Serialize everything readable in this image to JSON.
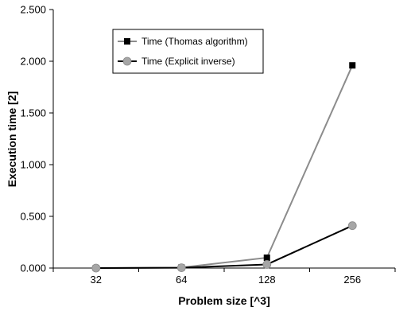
{
  "chart_data": {
    "type": "line",
    "xlabel": "Problem size [^3]",
    "ylabel": "Execution time [2]",
    "categories": [
      "32",
      "64",
      "128",
      "256"
    ],
    "y_ticks": [
      "0.000",
      "0.500",
      "1.000",
      "1.500",
      "2.000",
      "2.500"
    ],
    "ylim": [
      0,
      2.5
    ],
    "grid": false,
    "legend_position": "top-left",
    "series": [
      {
        "name": "Time (Thomas algorithm)",
        "values": [
          0.0,
          0.005,
          0.1,
          1.96
        ],
        "color": "#8c8c8c",
        "marker": "square",
        "marker_color": "#000000"
      },
      {
        "name": "Time (Explicit inverse)",
        "values": [
          0.0,
          0.003,
          0.035,
          0.41
        ],
        "color": "#000000",
        "marker": "circle",
        "marker_color": "#a6a6a6"
      }
    ]
  }
}
